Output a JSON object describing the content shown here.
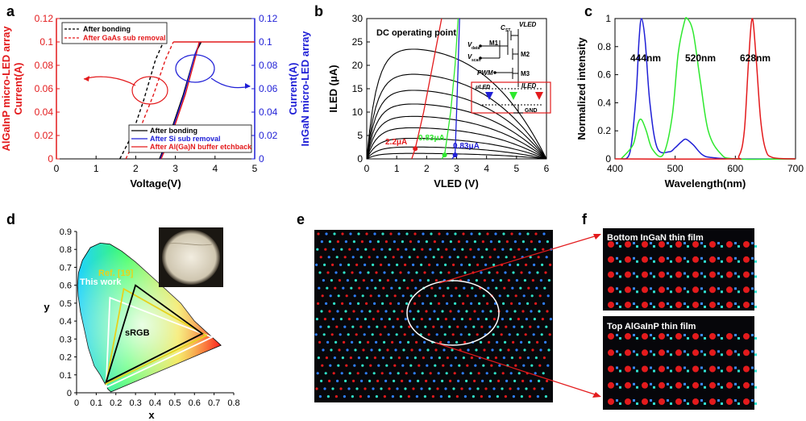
{
  "figure": {
    "panel_letters": [
      "a",
      "b",
      "c",
      "d",
      "e",
      "f"
    ],
    "colors": {
      "red": "#e31a1c",
      "blue": "#1f1fd6",
      "green": "#2ee82e",
      "yellow": "#e6d21e",
      "black": "#000000",
      "white": "#ffffff"
    }
  },
  "chart_data": [
    {
      "panel": "a",
      "type": "line",
      "xlabel": "Voltage(V)",
      "ylabel_left": "AlGaInP micro-LED array\nCurrent(A)",
      "ylabel_right": "Current(A)\nInGaN micro-LED array",
      "xlim": [
        0,
        5
      ],
      "ylim": [
        0,
        0.12
      ],
      "xticks": [
        "0",
        "1",
        "2",
        "3",
        "4",
        "5"
      ],
      "yticks_left": [
        "0",
        "0.02",
        "0.04",
        "0.06",
        "0.08",
        "0.1",
        "0.12"
      ],
      "yticks_right": [
        "0",
        "0.02",
        "0.04",
        "0.06",
        "0.08",
        "0.1",
        "0.12"
      ],
      "legend_top": [
        "After bonding",
        "After GaAs sub removal"
      ],
      "legend_bottom": [
        "After bonding",
        "After Si sub removal",
        "After Al(Ga)N buffer etchback"
      ],
      "series": [
        {
          "name": "After bonding",
          "group": "AlGaInP",
          "color": "#000000",
          "dash": true,
          "x": [
            1.6,
            1.9,
            2.2,
            2.5,
            2.7
          ],
          "y": [
            0,
            0.02,
            0.05,
            0.085,
            0.1
          ]
        },
        {
          "name": "After GaAs sub removal",
          "group": "AlGaInP",
          "color": "#e31a1c",
          "dash": true,
          "x": [
            1.75,
            2.1,
            2.45,
            2.75,
            2.95
          ],
          "y": [
            0,
            0.025,
            0.055,
            0.085,
            0.1
          ]
        },
        {
          "name": "After bonding",
          "group": "InGaN",
          "color": "#000000",
          "dash": false,
          "x": [
            2.6,
            2.9,
            3.2,
            3.5,
            3.65
          ],
          "y": [
            0,
            0.025,
            0.055,
            0.09,
            0.1
          ]
        },
        {
          "name": "After Si sub removal",
          "group": "InGaN",
          "color": "#1f1fd6",
          "dash": false,
          "x": [
            2.62,
            2.92,
            3.22,
            3.5,
            3.62
          ],
          "y": [
            0,
            0.025,
            0.055,
            0.09,
            0.1
          ]
        },
        {
          "name": "After Al(Ga)N buffer etchback",
          "group": "InGaN",
          "color": "#e31a1c",
          "dash": false,
          "x": [
            2.64,
            2.95,
            3.25,
            3.53,
            3.6
          ],
          "y": [
            0,
            0.025,
            0.055,
            0.09,
            0.1
          ]
        }
      ],
      "compliance_current": 0.1
    },
    {
      "panel": "b",
      "type": "line",
      "xlabel": "VLED (V)",
      "ylabel": "ILED (μA)",
      "xlim": [
        0,
        6
      ],
      "ylim": [
        0,
        30
      ],
      "xticks": [
        "0",
        "1",
        "2",
        "3",
        "4",
        "5",
        "6"
      ],
      "yticks": [
        "0",
        "5",
        "10",
        "15",
        "20",
        "25",
        "30"
      ],
      "title": "DC operating point",
      "annotations": [
        "2.2μA",
        "0.83μA",
        "0.83μA"
      ],
      "operating_points": [
        {
          "x": 1.62,
          "y": 2.2,
          "color": "#e31a1c"
        },
        {
          "x": 2.6,
          "y": 0.83,
          "color": "#2ee82e"
        },
        {
          "x": 2.95,
          "y": 0.83,
          "color": "#1f1fd6"
        }
      ],
      "transistor_curve_levels": [
        1.2,
        2.6,
        4.5,
        6.8,
        9.3,
        12.0,
        15.0,
        18.5,
        24.0
      ],
      "led_curves": [
        {
          "color": "#e31a1c",
          "x": [
            1.5,
            1.62,
            1.9,
            2.2,
            2.5
          ],
          "y": [
            0,
            2.2,
            10,
            20,
            30
          ]
        },
        {
          "color": "#2ee82e",
          "x": [
            2.5,
            2.6,
            2.8,
            2.95,
            3.05
          ],
          "y": [
            0,
            0.83,
            10,
            20,
            30
          ]
        },
        {
          "color": "#1f1fd6",
          "x": [
            2.85,
            2.95,
            3.0,
            3.05,
            3.1
          ],
          "y": [
            0,
            0.83,
            10,
            20,
            30
          ]
        }
      ],
      "circuit_labels": [
        "C",
        "ST",
        "VLED",
        "V",
        "data",
        "V",
        "scan",
        "M1",
        "M2",
        "PWM",
        "M3",
        "μLED",
        "ILED",
        "GND"
      ]
    },
    {
      "panel": "c",
      "type": "line",
      "xlabel": "Wavelength(nm)",
      "ylabel": "Normalized intensity",
      "xlim": [
        400,
        700
      ],
      "ylim": [
        0,
        1
      ],
      "xticks": [
        "400",
        "500",
        "600",
        "700"
      ],
      "yticks": [
        "0",
        "0.2",
        "0.4",
        "0.6",
        "0.8",
        "1"
      ],
      "annotations": [
        "444nm",
        "520nm",
        "628nm"
      ],
      "series": [
        {
          "name": "444nm",
          "color": "#1f1fd6",
          "x": [
            410,
            425,
            435,
            440,
            444,
            450,
            458,
            470,
            490,
            500,
            510,
            518,
            530,
            545,
            560,
            600,
            700
          ],
          "y": [
            0,
            0.05,
            0.45,
            0.85,
            1.0,
            0.85,
            0.4,
            0.08,
            0.05,
            0.08,
            0.12,
            0.14,
            0.1,
            0.03,
            0.01,
            0,
            0
          ]
        },
        {
          "name": "520nm",
          "color": "#2ee82e",
          "x": [
            410,
            430,
            438,
            444,
            452,
            462,
            480,
            495,
            505,
            515,
            520,
            530,
            542,
            555,
            575,
            600,
            700
          ],
          "y": [
            0,
            0.1,
            0.25,
            0.28,
            0.2,
            0.07,
            0.03,
            0.3,
            0.75,
            0.97,
            1.0,
            0.9,
            0.55,
            0.2,
            0.04,
            0,
            0
          ]
        },
        {
          "name": "628nm",
          "color": "#e31a1c",
          "x": [
            400,
            590,
            606,
            615,
            622,
            628,
            634,
            642,
            650,
            662,
            700
          ],
          "y": [
            0,
            0,
            0.02,
            0.2,
            0.7,
            1.0,
            0.75,
            0.28,
            0.07,
            0.01,
            0
          ]
        }
      ]
    },
    {
      "panel": "d",
      "type": "scatter",
      "xlabel": "x",
      "ylabel": "y",
      "xlim": [
        0,
        0.8
      ],
      "ylim": [
        0,
        0.9
      ],
      "xticks": [
        "0",
        "0.1",
        "0.2",
        "0.3",
        "0.4",
        "0.5",
        "0.6",
        "0.7",
        "0.8"
      ],
      "yticks": [
        "0",
        "0.1",
        "0.2",
        "0.3",
        "0.4",
        "0.5",
        "0.6",
        "0.7",
        "0.8",
        "0.9"
      ],
      "gamuts": [
        {
          "name": "This work",
          "color": "#ffffff",
          "points": [
            [
              0.69,
              0.31
            ],
            [
              0.17,
              0.53
            ],
            [
              0.15,
              0.03
            ]
          ]
        },
        {
          "name": "Ref. [19]",
          "color": "#e6d21e",
          "points": [
            [
              0.66,
              0.32
            ],
            [
              0.24,
              0.58
            ],
            [
              0.15,
              0.05
            ]
          ]
        },
        {
          "name": "sRGB",
          "color": "#000000",
          "points": [
            [
              0.64,
              0.33
            ],
            [
              0.3,
              0.6
            ],
            [
              0.15,
              0.06
            ]
          ]
        }
      ],
      "labels": [
        "Ref. [19]",
        "This work",
        "sRGB"
      ]
    }
  ],
  "micrographs": {
    "f_top_label": "Bottom InGaN thin film",
    "f_bottom_label": "Top AlGaInP thin film"
  }
}
